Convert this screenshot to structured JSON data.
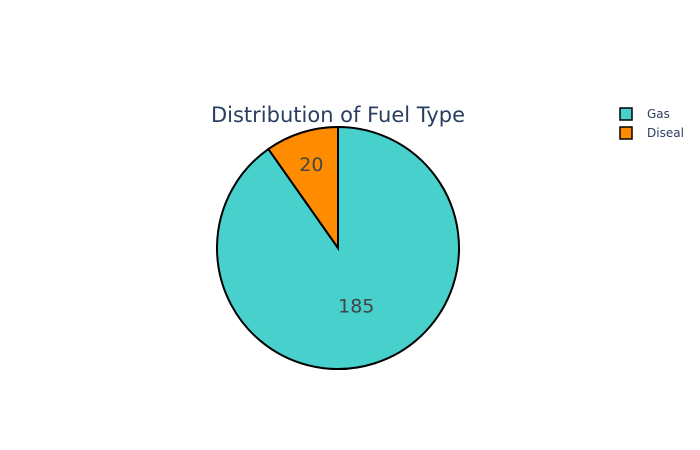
{
  "chart_data": {
    "type": "pie",
    "title": "Distribution of Fuel Type",
    "labels": [
      "Gas",
      "Diseal"
    ],
    "values": [
      185,
      20
    ],
    "colors": [
      "#48d1cc",
      "#ff8c00"
    ],
    "text_labels": [
      "185",
      "20"
    ],
    "slice_outline_color": "#000000",
    "legend_position": "top-right",
    "sort": "descending",
    "direction": "clockwise"
  }
}
